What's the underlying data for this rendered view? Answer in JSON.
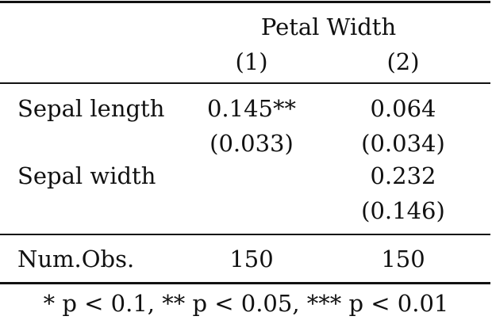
{
  "header": {
    "dependent_variable": "Petal Width",
    "columns": [
      "(1)",
      "(2)"
    ]
  },
  "rows": [
    {
      "label": "Sepal length",
      "values": [
        "0.145**",
        "0.064"
      ],
      "se": [
        "(0.033)",
        "(0.034)"
      ]
    },
    {
      "label": "Sepal width",
      "values": [
        "",
        "0.232"
      ],
      "se": [
        "",
        "(0.146)"
      ]
    }
  ],
  "stats": {
    "label": "Num.Obs.",
    "values": [
      "150",
      "150"
    ]
  },
  "footnote": "* p < 0.1, ** p < 0.05, *** p < 0.01"
}
